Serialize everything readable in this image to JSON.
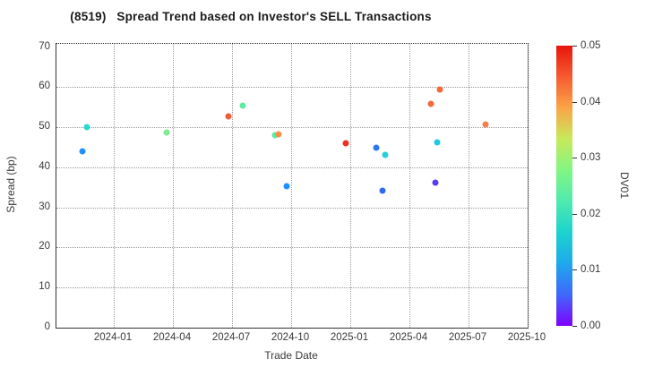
{
  "chart_data": {
    "type": "scatter",
    "title": "(8519)   Spread Trend based on Investor's SELL Transactions",
    "xlabel": "Trade Date",
    "ylabel": "Spread (bp)",
    "ylim": [
      0,
      70
    ],
    "yticks": [
      0,
      10,
      20,
      30,
      40,
      50,
      60,
      70
    ],
    "xticks": [
      "2024-01",
      "2024-04",
      "2024-07",
      "2024-10",
      "2025-01",
      "2025-04",
      "2025-07",
      "2025-10"
    ],
    "grid": true,
    "legend": "none",
    "colorbar": {
      "label": "DV01",
      "min": 0.0,
      "max": 0.05,
      "ticks": [
        {
          "value": 0.0,
          "label": "0.00"
        },
        {
          "value": 0.01,
          "label": "0.01"
        },
        {
          "value": 0.02,
          "label": "0.02"
        },
        {
          "value": 0.03,
          "label": "0.03"
        },
        {
          "value": 0.04,
          "label": "0.04"
        },
        {
          "value": 0.05,
          "label": "0.05"
        }
      ],
      "gradient_bottom_to_top": [
        "#7F00FF",
        "#3E68FB",
        "#1FA8EC",
        "#1BD3CF",
        "#4FEAAE",
        "#82F683",
        "#C8E95A",
        "#FBA447",
        "#F55B31",
        "#E8150D"
      ]
    },
    "points": [
      {
        "date": "2023-11-13",
        "spread_bp": 44.0,
        "dv01": 0.011,
        "color": "#1E90FF"
      },
      {
        "date": "2023-11-20",
        "spread_bp": 50.0,
        "dv01": 0.02,
        "color": "#2BD8CE"
      },
      {
        "date": "2024-03-22",
        "spread_bp": 48.8,
        "dv01": 0.029,
        "color": "#7DEC8E"
      },
      {
        "date": "2024-06-26",
        "spread_bp": 52.6,
        "dv01": 0.044,
        "color": "#F25B33"
      },
      {
        "date": "2024-07-17",
        "spread_bp": 55.4,
        "dv01": 0.026,
        "color": "#5FECA0"
      },
      {
        "date": "2024-09-06",
        "spread_bp": 48.0,
        "dv01": 0.026,
        "color": "#5BE8A0"
      },
      {
        "date": "2024-09-12",
        "spread_bp": 48.2,
        "dv01": 0.039,
        "color": "#F78E4A"
      },
      {
        "date": "2024-09-24",
        "spread_bp": 35.4,
        "dv01": 0.011,
        "color": "#1E90FF"
      },
      {
        "date": "2024-12-25",
        "spread_bp": 46.1,
        "dv01": 0.047,
        "color": "#E93223"
      },
      {
        "date": "2025-02-11",
        "spread_bp": 45.0,
        "dv01": 0.01,
        "color": "#2B77F2"
      },
      {
        "date": "2025-02-20",
        "spread_bp": 34.2,
        "dv01": 0.009,
        "color": "#2F6BEE"
      },
      {
        "date": "2025-02-25",
        "spread_bp": 43.2,
        "dv01": 0.018,
        "color": "#24CFDA"
      },
      {
        "date": "2025-05-04",
        "spread_bp": 55.8,
        "dv01": 0.041,
        "color": "#F4683A"
      },
      {
        "date": "2025-05-11",
        "spread_bp": 36.2,
        "dv01": 0.005,
        "color": "#5A3BF2"
      },
      {
        "date": "2025-05-13",
        "spread_bp": 46.3,
        "dv01": 0.017,
        "color": "#1FC9E0"
      },
      {
        "date": "2025-05-18",
        "spread_bp": 59.4,
        "dv01": 0.041,
        "color": "#F5663A"
      },
      {
        "date": "2025-07-27",
        "spread_bp": 50.6,
        "dv01": 0.04,
        "color": "#F5814C"
      }
    ]
  }
}
